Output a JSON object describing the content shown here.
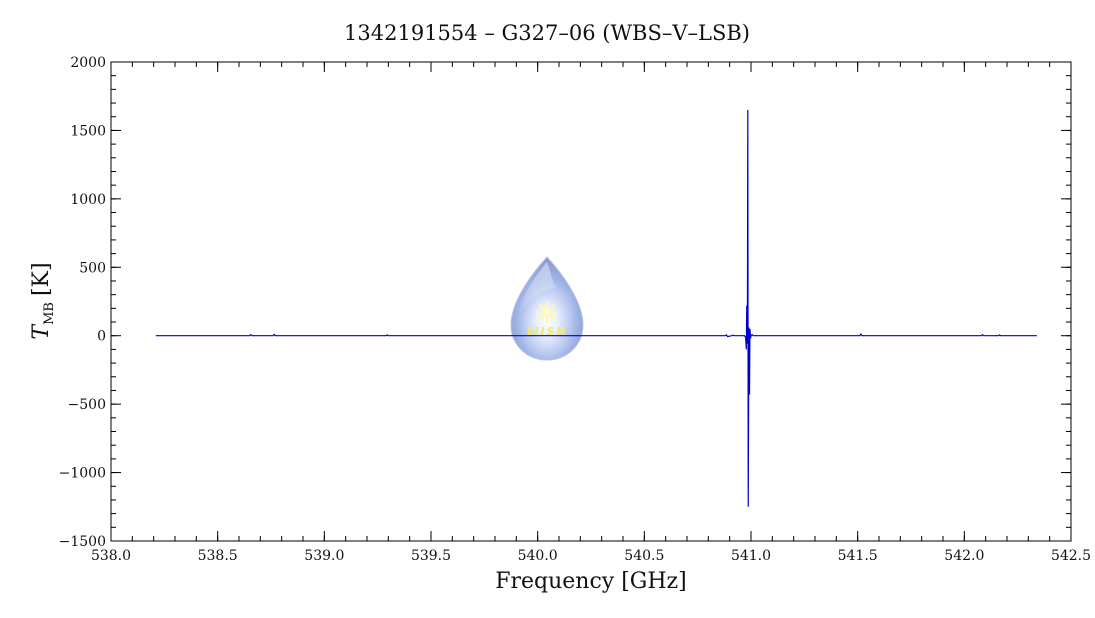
{
  "chart_data": {
    "type": "line",
    "title": "1342191554 – G327–06 (WBS–V–LSB)",
    "xlabel": "Frequency [GHz]",
    "ylabel_main": "T",
    "ylabel_sub": "MB",
    "ylabel_unit": "[K]",
    "xlim": [
      538.0,
      542.5
    ],
    "ylim": [
      -1500,
      2000
    ],
    "x_ticks": [
      538.0,
      538.5,
      539.0,
      539.5,
      540.0,
      540.5,
      541.0,
      541.5,
      542.0,
      542.5
    ],
    "x_tick_labels": [
      "538.0",
      "538.5",
      "539.0",
      "539.5",
      "540.0",
      "540.5",
      "541.0",
      "541.5",
      "542.0",
      "542.5"
    ],
    "y_ticks": [
      -1500,
      -1000,
      -500,
      0,
      500,
      1000,
      1500,
      2000
    ],
    "y_tick_labels": [
      "−1500",
      "−1000",
      "−500",
      "0",
      "500",
      "1000",
      "1500",
      "2000"
    ],
    "grid": false,
    "line_color": "#0000cc",
    "series": [
      {
        "x": [
          538.21,
          538.65,
          538.655,
          538.66,
          538.76,
          538.765,
          538.77,
          539.29,
          539.295,
          539.3,
          540.88,
          540.885,
          540.89,
          540.91,
          540.915,
          540.92,
          540.97,
          540.975,
          540.978,
          540.98,
          540.983,
          540.985,
          540.987,
          540.99,
          540.993,
          540.995,
          540.998,
          541.0,
          541.005,
          541.01,
          541.51,
          541.515,
          541.52,
          542.08,
          542.085,
          542.09,
          542.16,
          542.165,
          542.17,
          542.34
        ],
        "y": [
          0,
          0,
          8,
          0,
          0,
          10,
          0,
          0,
          6,
          0,
          0,
          6,
          -6,
          0,
          5,
          0,
          0,
          -15,
          -100,
          220,
          -60,
          1650,
          -1250,
          60,
          -430,
          50,
          -20,
          0,
          8,
          0,
          0,
          12,
          0,
          0,
          8,
          0,
          0,
          6,
          0,
          0
        ]
      }
    ],
    "watermark": "WISH"
  }
}
